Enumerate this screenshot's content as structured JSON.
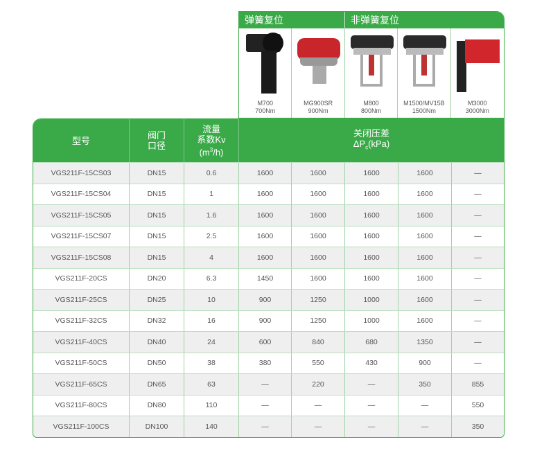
{
  "groups": [
    {
      "label": "弹簧复位"
    },
    {
      "label": "非弹簧复位"
    }
  ],
  "products": [
    {
      "model": "M700",
      "torque": "700Nm"
    },
    {
      "model": "MG900SR",
      "torque": "900Nm"
    },
    {
      "model": "M800",
      "torque": "800Nm"
    },
    {
      "model": "M1500/MV15B",
      "torque": "1500Nm"
    },
    {
      "model": "M3000",
      "torque": "3000Nm"
    }
  ],
  "headers": {
    "model": "型号",
    "dn1": "阀门",
    "dn2": "口径",
    "kv1": "流量",
    "kv2": "系数Kv",
    "kv3a": "(m",
    "kv3sup": "3",
    "kv3b": "/h)",
    "dp1": "关闭压差",
    "dp2a": "ΔP",
    "dp2sub": "c",
    "dp2b": "(kPa)"
  },
  "rows": [
    [
      "VGS211F-15CS03",
      "DN15",
      "0.6",
      "1600",
      "1600",
      "1600",
      "1600",
      "—"
    ],
    [
      "VGS211F-15CS04",
      "DN15",
      "1",
      "1600",
      "1600",
      "1600",
      "1600",
      "—"
    ],
    [
      "VGS211F-15CS05",
      "DN15",
      "1.6",
      "1600",
      "1600",
      "1600",
      "1600",
      "—"
    ],
    [
      "VGS211F-15CS07",
      "DN15",
      "2.5",
      "1600",
      "1600",
      "1600",
      "1600",
      "—"
    ],
    [
      "VGS211F-15CS08",
      "DN15",
      "4",
      "1600",
      "1600",
      "1600",
      "1600",
      "—"
    ],
    [
      "VGS211F-20CS",
      "DN20",
      "6.3",
      "1450",
      "1600",
      "1600",
      "1600",
      "—"
    ],
    [
      "VGS211F-25CS",
      "DN25",
      "10",
      "900",
      "1250",
      "1000",
      "1600",
      "—"
    ],
    [
      "VGS211F-32CS",
      "DN32",
      "16",
      "900",
      "1250",
      "1000",
      "1600",
      "—"
    ],
    [
      "VGS211F-40CS",
      "DN40",
      "24",
      "600",
      "840",
      "680",
      "1350",
      "—"
    ],
    [
      "VGS211F-50CS",
      "DN50",
      "38",
      "380",
      "550",
      "430",
      "900",
      "—"
    ],
    [
      "VGS211F-65CS",
      "DN65",
      "63",
      "—",
      "220",
      "—",
      "350",
      "855"
    ],
    [
      "VGS211F-80CS",
      "DN80",
      "110",
      "—",
      "—",
      "—",
      "—",
      "550"
    ],
    [
      "VGS211F-100CS",
      "DN100",
      "140",
      "—",
      "—",
      "—",
      "—",
      "350"
    ]
  ],
  "colors": {
    "accent": "#3aaa48",
    "row_alt": "#efefef"
  }
}
